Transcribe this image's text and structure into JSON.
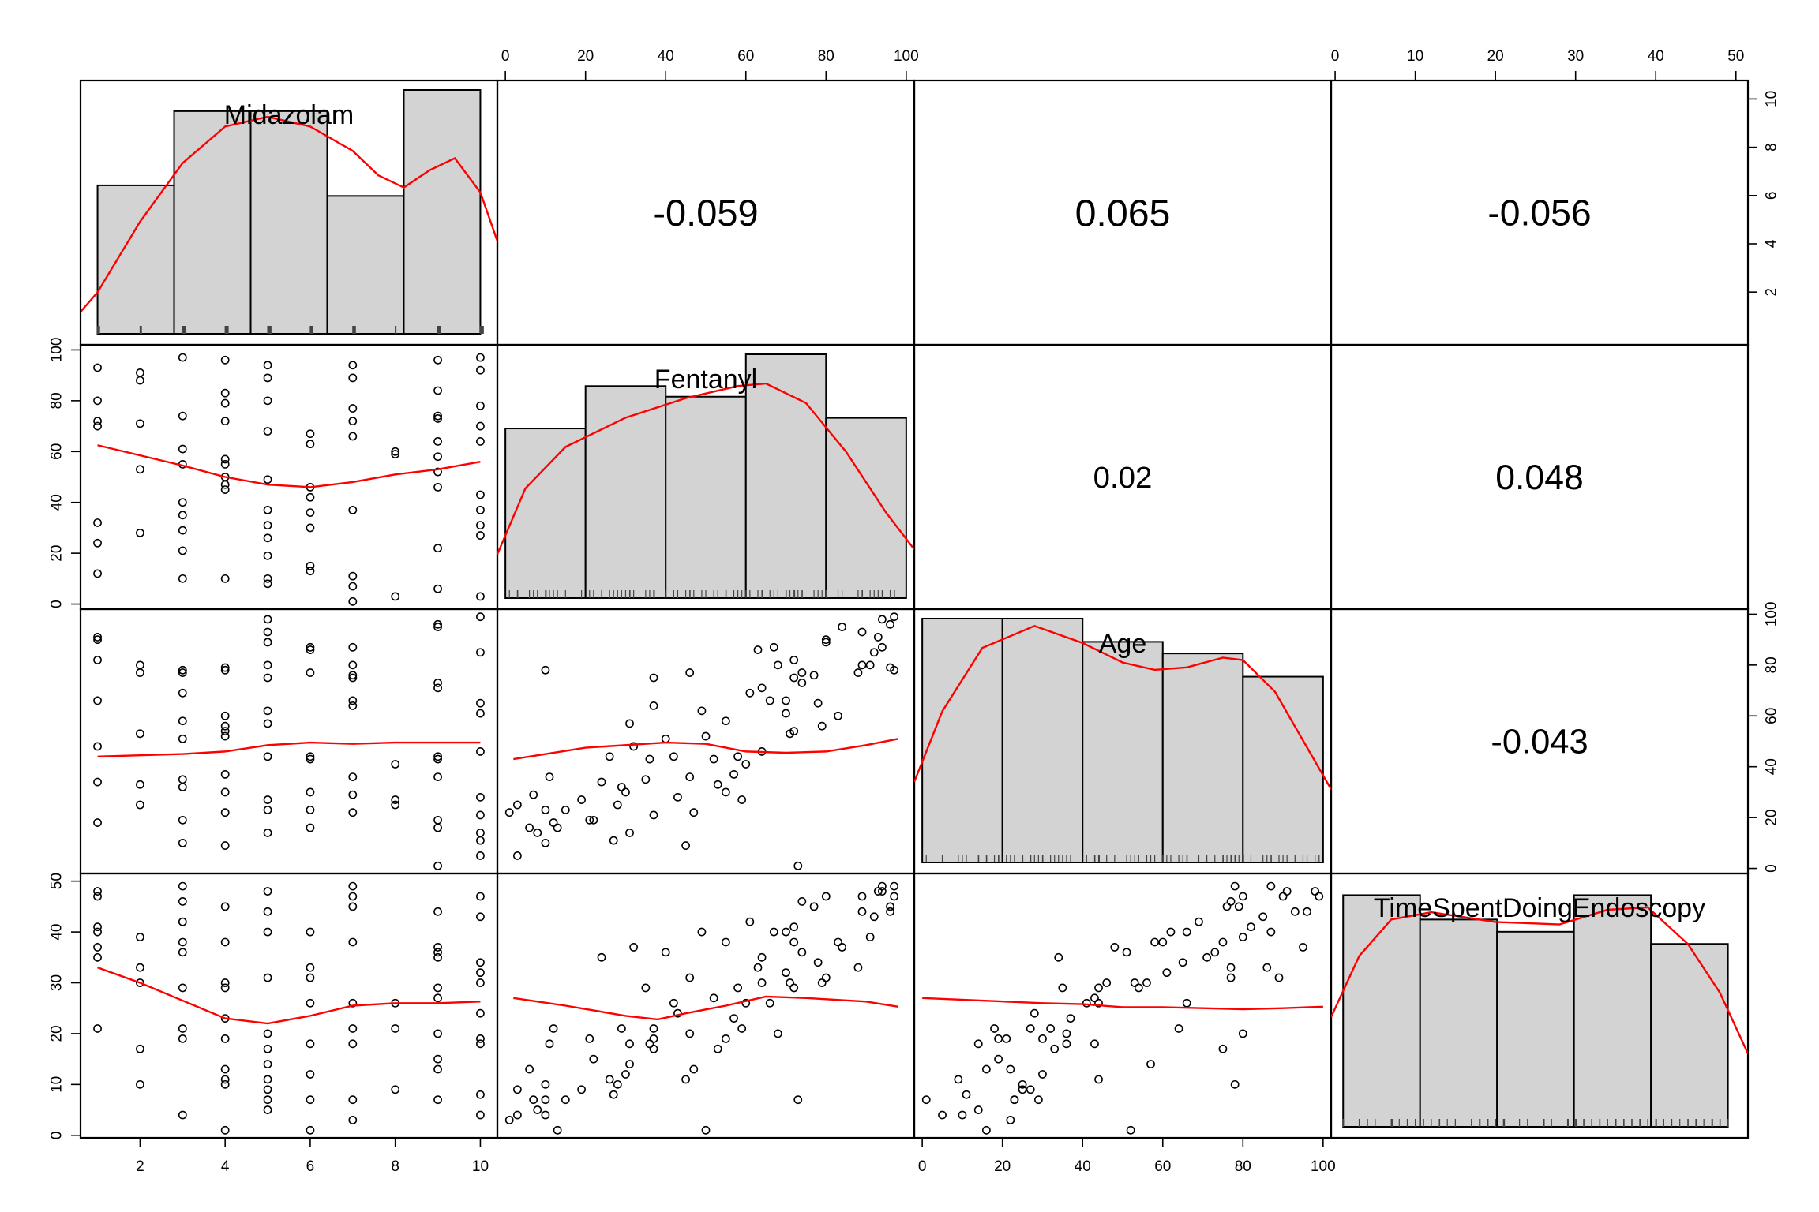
{
  "chart_data": {
    "type": "scatter-matrix",
    "variables": [
      "Midazolam",
      "Fentanyl",
      "Age",
      "TimeSpentDoingEndoscopy"
    ],
    "ranges": {
      "Midazolam": [
        0.6,
        10.4
      ],
      "Fentanyl": [
        -2,
        102
      ],
      "Age": [
        -2,
        102
      ],
      "TimeSpentDoingEndoscopy": [
        -0.5,
        51.5
      ]
    },
    "ticks": {
      "Midazolam": [
        "2",
        "4",
        "6",
        "8",
        "10"
      ],
      "Fentanyl": [
        "0",
        "20",
        "40",
        "60",
        "80",
        "100"
      ],
      "Age": [
        "0",
        "20",
        "40",
        "60",
        "80",
        "100"
      ],
      "TimeSpentDoingEndoscopy": [
        "0",
        "10",
        "20",
        "30",
        "40",
        "50"
      ]
    },
    "correlations": [
      {
        "row": 0,
        "col": 1,
        "value": "-0.059"
      },
      {
        "row": 0,
        "col": 2,
        "value": "0.065"
      },
      {
        "row": 0,
        "col": 3,
        "value": "-0.056"
      },
      {
        "row": 1,
        "col": 2,
        "value": "0.02"
      },
      {
        "row": 1,
        "col": 3,
        "value": "0.048"
      },
      {
        "row": 2,
        "col": 3,
        "value": "-0.043"
      }
    ],
    "histograms": [
      {
        "variable": "Midazolam",
        "bins": [
          1,
          2.8,
          4.6,
          6.4,
          8.2,
          10
        ],
        "counts": [
          14,
          21,
          21,
          13,
          23
        ],
        "ymax": 23,
        "density": [
          [
            0.6,
            0.09
          ],
          [
            1.0,
            0.17
          ],
          [
            2.0,
            0.46
          ],
          [
            3.0,
            0.7
          ],
          [
            4.0,
            0.85
          ],
          [
            5.0,
            0.89
          ],
          [
            6.0,
            0.85
          ],
          [
            7.0,
            0.75
          ],
          [
            7.6,
            0.65
          ],
          [
            8.2,
            0.6
          ],
          [
            8.8,
            0.67
          ],
          [
            9.4,
            0.72
          ],
          [
            10.0,
            0.58
          ],
          [
            10.4,
            0.38
          ]
        ]
      },
      {
        "variable": "Fentanyl",
        "bins": [
          0,
          20,
          40,
          60,
          80,
          100
        ],
        "counts": [
          16,
          20,
          19,
          23,
          17
        ],
        "ymax": 23,
        "density": [
          [
            -2,
            0.18
          ],
          [
            5,
            0.45
          ],
          [
            15,
            0.62
          ],
          [
            30,
            0.74
          ],
          [
            45,
            0.82
          ],
          [
            58,
            0.87
          ],
          [
            65,
            0.88
          ],
          [
            75,
            0.8
          ],
          [
            85,
            0.6
          ],
          [
            95,
            0.35
          ],
          [
            102,
            0.2
          ]
        ]
      },
      {
        "variable": "Age",
        "bins": [
          0,
          20,
          40,
          60,
          80,
          100
        ],
        "counts": [
          21,
          21,
          19,
          18,
          16
        ],
        "ymax": 21,
        "density": [
          [
            -2,
            0.33
          ],
          [
            5,
            0.62
          ],
          [
            15,
            0.88
          ],
          [
            28,
            0.97
          ],
          [
            40,
            0.9
          ],
          [
            50,
            0.82
          ],
          [
            58,
            0.79
          ],
          [
            66,
            0.8
          ],
          [
            75,
            0.84
          ],
          [
            80,
            0.83
          ],
          [
            88,
            0.7
          ],
          [
            95,
            0.5
          ],
          [
            102,
            0.3
          ]
        ]
      },
      {
        "variable": "TimeSpentDoingEndoscopy",
        "bins": [
          1,
          10.6,
          20.2,
          29.8,
          39.4,
          49
        ],
        "counts": [
          19,
          17,
          16,
          19,
          15
        ],
        "ymax": 20,
        "density": [
          [
            -0.5,
            0.45
          ],
          [
            3,
            0.7
          ],
          [
            7,
            0.85
          ],
          [
            12,
            0.88
          ],
          [
            20,
            0.84
          ],
          [
            28,
            0.83
          ],
          [
            34,
            0.89
          ],
          [
            39,
            0.9
          ],
          [
            44,
            0.75
          ],
          [
            48,
            0.55
          ],
          [
            51.5,
            0.3
          ]
        ]
      }
    ],
    "points": {
      "Midazolam": [
        1,
        1,
        1,
        1,
        1,
        1,
        1,
        2,
        2,
        2,
        2,
        2,
        3,
        3,
        3,
        3,
        3,
        3,
        3,
        3,
        3,
        4,
        4,
        4,
        4,
        4,
        4,
        4,
        4,
        4,
        4,
        5,
        5,
        5,
        5,
        5,
        5,
        5,
        5,
        5,
        5,
        5,
        6,
        6,
        6,
        6,
        6,
        6,
        6,
        6,
        7,
        7,
        7,
        7,
        7,
        7,
        7,
        7,
        7,
        8,
        8,
        8,
        9,
        9,
        9,
        9,
        9,
        9,
        9,
        9,
        9,
        9,
        10,
        10,
        10,
        10,
        10,
        10,
        10,
        10,
        10,
        10
      ],
      "Fentanyl": [
        93,
        80,
        72,
        70,
        32,
        24,
        12,
        91,
        88,
        71,
        53,
        28,
        97,
        74,
        61,
        55,
        40,
        35,
        29,
        21,
        10,
        96,
        83,
        79,
        72,
        57,
        55,
        47,
        45,
        10,
        50,
        94,
        89,
        80,
        68,
        37,
        31,
        26,
        19,
        10,
        8,
        49,
        67,
        63,
        46,
        42,
        36,
        30,
        15,
        13,
        94,
        89,
        77,
        72,
        66,
        37,
        11,
        7,
        1,
        60,
        59,
        3,
        96,
        84,
        74,
        64,
        58,
        52,
        46,
        22,
        6,
        73,
        97,
        92,
        78,
        70,
        64,
        43,
        37,
        31,
        27,
        3
      ],
      "Age": [
        91,
        90,
        82,
        66,
        48,
        34,
        18,
        80,
        77,
        53,
        33,
        25,
        78,
        77,
        69,
        58,
        51,
        35,
        32,
        19,
        10,
        79,
        60,
        56,
        54,
        37,
        30,
        22,
        9,
        78,
        52,
        98,
        93,
        89,
        80,
        75,
        57,
        44,
        27,
        23,
        14,
        62,
        87,
        86,
        77,
        44,
        43,
        30,
        23,
        16,
        87,
        80,
        76,
        75,
        66,
        64,
        36,
        29,
        22,
        41,
        27,
        25,
        96,
        95,
        73,
        71,
        44,
        43,
        36,
        19,
        16,
        1,
        99,
        85,
        65,
        61,
        46,
        28,
        21,
        14,
        11,
        5
      ],
      "TimeSpentDoingEndoscopy": [
        48,
        47,
        41,
        40,
        37,
        35,
        21,
        39,
        33,
        30,
        17,
        10,
        49,
        46,
        42,
        38,
        36,
        29,
        21,
        19,
        4,
        45,
        38,
        30,
        29,
        23,
        19,
        13,
        11,
        10,
        1,
        48,
        44,
        31,
        20,
        17,
        14,
        11,
        9,
        7,
        5,
        40,
        40,
        33,
        31,
        26,
        18,
        12,
        7,
        1,
        49,
        47,
        45,
        38,
        26,
        21,
        18,
        7,
        3,
        26,
        21,
        9,
        44,
        37,
        36,
        35,
        29,
        27,
        20,
        15,
        13,
        7,
        47,
        43,
        34,
        32,
        30,
        24,
        19,
        18,
        8,
        4
      ]
    },
    "loess": {
      "1-0": [
        [
          1,
          62.5
        ],
        [
          2,
          58.5
        ],
        [
          3,
          54.5
        ],
        [
          4,
          50
        ],
        [
          5,
          47
        ],
        [
          6,
          46
        ],
        [
          7,
          48
        ],
        [
          8,
          51
        ],
        [
          9,
          53
        ],
        [
          10,
          56
        ]
      ],
      "2-0": [
        [
          1,
          44
        ],
        [
          2,
          44.5
        ],
        [
          3,
          45
        ],
        [
          4,
          46
        ],
        [
          5,
          48.5
        ],
        [
          6,
          49.5
        ],
        [
          7,
          49
        ],
        [
          8,
          49.5
        ],
        [
          9,
          49.5
        ],
        [
          10,
          49.5
        ]
      ],
      "3-0": [
        [
          1,
          33
        ],
        [
          2,
          30
        ],
        [
          3,
          26.5
        ],
        [
          4,
          23
        ],
        [
          5,
          22
        ],
        [
          6,
          23.5
        ],
        [
          7,
          25.5
        ],
        [
          8,
          26
        ],
        [
          9,
          26
        ],
        [
          10,
          26.3
        ]
      ],
      "2-1": [
        [
          2,
          43
        ],
        [
          20,
          47.5
        ],
        [
          40,
          49.5
        ],
        [
          50,
          49
        ],
        [
          60,
          46
        ],
        [
          70,
          45.5
        ],
        [
          80,
          46
        ],
        [
          90,
          48.5
        ],
        [
          98,
          51
        ]
      ],
      "3-1": [
        [
          2,
          27
        ],
        [
          15,
          25.5
        ],
        [
          30,
          23.5
        ],
        [
          38,
          22.8
        ],
        [
          45,
          24
        ],
        [
          55,
          25.5
        ],
        [
          65,
          27.3
        ],
        [
          75,
          27
        ],
        [
          90,
          26.3
        ],
        [
          98,
          25.3
        ]
      ],
      "3-2": [
        [
          0,
          27
        ],
        [
          15,
          26.5
        ],
        [
          30,
          26
        ],
        [
          40,
          25.8
        ],
        [
          50,
          25.2
        ],
        [
          60,
          25.2
        ],
        [
          70,
          25
        ],
        [
          80,
          24.8
        ],
        [
          90,
          25
        ],
        [
          100,
          25.3
        ]
      ]
    }
  }
}
